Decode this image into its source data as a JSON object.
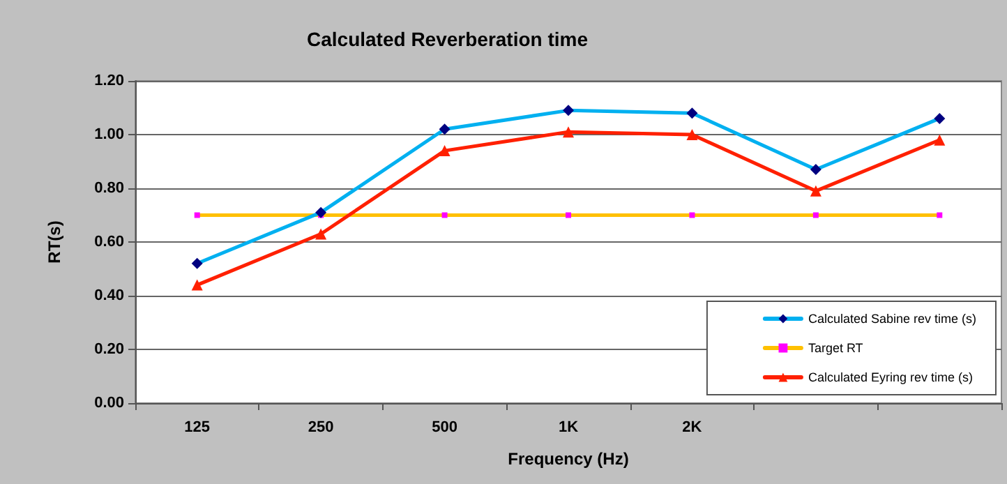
{
  "chart_data": {
    "type": "line",
    "title": "Calculated Reverberation time",
    "xlabel": "Frequency (Hz)",
    "ylabel": "RT(s)",
    "categories": [
      "125",
      "250",
      "500",
      "1K",
      "2K",
      null,
      null
    ],
    "series": [
      {
        "name": "Calculated Sabine rev time (s)",
        "color": "#00b0f0",
        "marker": "diamond",
        "values": [
          0.52,
          0.71,
          1.02,
          1.09,
          1.08,
          0.87,
          1.06
        ]
      },
      {
        "name": "Target RT",
        "color": "#ffc000",
        "marker": "square",
        "values": [
          0.7,
          0.7,
          0.7,
          0.7,
          0.7,
          0.7,
          0.7
        ]
      },
      {
        "name": "Calculated Eyring rev time (s)",
        "color": "#ff2000",
        "marker": "triangle",
        "values": [
          0.44,
          0.63,
          0.94,
          1.01,
          1.0,
          0.79,
          0.98
        ]
      }
    ],
    "ylim": [
      0,
      1.2
    ],
    "yticks": [
      {
        "value": 0,
        "label": "0.00"
      },
      {
        "value": 0.2,
        "label": "0.20"
      },
      {
        "value": 0.4,
        "label": "0.40"
      },
      {
        "value": 0.6,
        "label": "0.60"
      },
      {
        "value": 0.8,
        "label": "0.80"
      },
      {
        "value": 1.0,
        "label": "1.00"
      },
      {
        "value": 1.2,
        "label": "1.20"
      }
    ],
    "grid": "y",
    "legend": "bottom right"
  }
}
